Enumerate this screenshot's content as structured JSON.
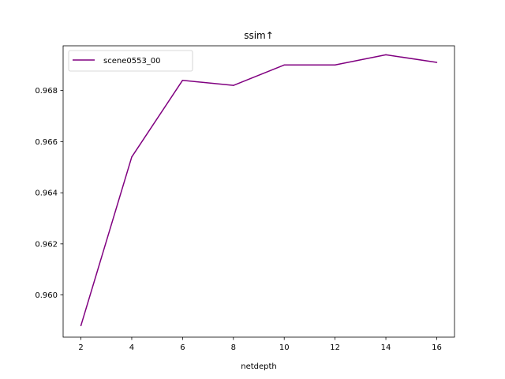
{
  "chart_data": {
    "type": "line",
    "title": "ssim↑",
    "xlabel": "netdepth",
    "ylabel": "",
    "x": [
      2,
      4,
      6,
      8,
      10,
      12,
      14,
      16
    ],
    "series": [
      {
        "name": "scene0553_00",
        "color": "#800080",
        "values": [
          0.9588,
          0.9654,
          0.9684,
          0.9682,
          0.969,
          0.969,
          0.9694,
          0.9691
        ]
      }
    ],
    "xlim": [
      1.3,
      16.7
    ],
    "ylim": [
      0.95835,
      0.96975
    ],
    "xticks": [
      2,
      4,
      6,
      8,
      10,
      12,
      14,
      16
    ],
    "xtick_labels": [
      "2",
      "4",
      "6",
      "8",
      "10",
      "12",
      "14",
      "16"
    ],
    "yticks": [
      0.96,
      0.962,
      0.964,
      0.966,
      0.968
    ],
    "ytick_labels": [
      "0.960",
      "0.962",
      "0.964",
      "0.966",
      "0.968"
    ],
    "legend_position": "top-left",
    "grid": false
  }
}
